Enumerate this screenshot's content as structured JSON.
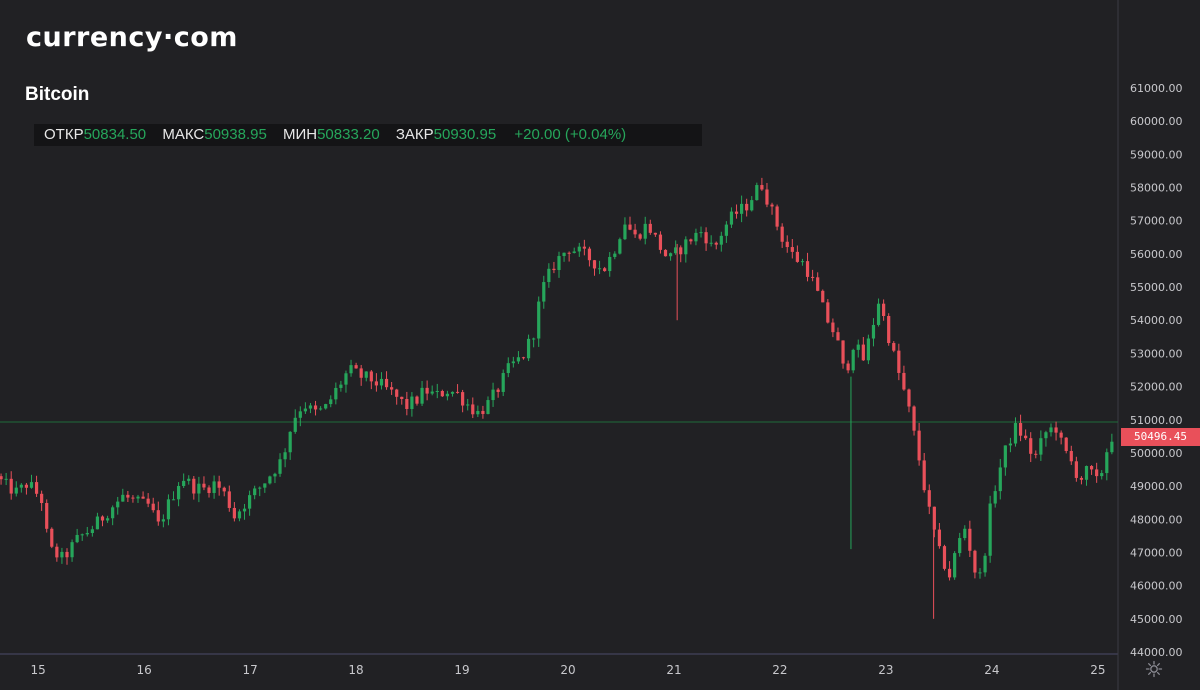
{
  "logo": "currency·com",
  "title": "Bitcoin",
  "ohlc": {
    "open_label": "ОТКР",
    "open": "50834.50",
    "high_label": "МАКС",
    "high": "50938.95",
    "low_label": "МИН",
    "low": "50833.20",
    "close_label": "ЗАКР",
    "close": "50930.95",
    "change": "+20.00 (+0.04%)"
  },
  "last_price_tag": "50496.45",
  "colors": {
    "up": "#26a65b",
    "down": "#e9505a",
    "background": "#212124",
    "price_line": "#1e6b3a"
  },
  "chart_data": {
    "type": "candlestick",
    "title": "Bitcoin",
    "xlabel": "",
    "ylabel": "",
    "x_tick_labels": [
      "15",
      "16",
      "17",
      "18",
      "19",
      "20",
      "21",
      "22",
      "23",
      "24",
      "25"
    ],
    "y_tick_labels": [
      "61000.00",
      "60000.00",
      "59000.00",
      "58000.00",
      "57000.00",
      "56000.00",
      "55000.00",
      "54000.00",
      "53000.00",
      "52000.00",
      "51000.00",
      "50000.00",
      "49000.00",
      "48000.00",
      "47000.00",
      "46000.00",
      "45000.00",
      "44000.00"
    ],
    "ylim": [
      44000,
      61300
    ],
    "x_range_days": [
      14.64,
      25.19
    ],
    "price_line": 50930.95,
    "grid": false,
    "axis_side": "right",
    "anchors": [
      [
        14.64,
        49300
      ],
      [
        14.75,
        49000
      ],
      [
        14.85,
        48800
      ],
      [
        14.95,
        49100
      ],
      [
        15.08,
        48600
      ],
      [
        15.15,
        47100
      ],
      [
        15.28,
        46800
      ],
      [
        15.42,
        47400
      ],
      [
        15.58,
        47800
      ],
      [
        15.72,
        48300
      ],
      [
        15.85,
        48700
      ],
      [
        15.98,
        48500
      ],
      [
        16.1,
        48400
      ],
      [
        16.18,
        47800
      ],
      [
        16.3,
        48600
      ],
      [
        16.4,
        49300
      ],
      [
        16.5,
        49000
      ],
      [
        16.6,
        48900
      ],
      [
        16.72,
        49100
      ],
      [
        16.82,
        48700
      ],
      [
        16.9,
        48100
      ],
      [
        17.0,
        48500
      ],
      [
        17.15,
        49000
      ],
      [
        17.25,
        49400
      ],
      [
        17.35,
        49800
      ],
      [
        17.45,
        51000
      ],
      [
        17.55,
        51500
      ],
      [
        17.65,
        51200
      ],
      [
        17.75,
        51300
      ],
      [
        17.88,
        52000
      ],
      [
        17.98,
        52500
      ],
      [
        18.1,
        52300
      ],
      [
        18.2,
        52200
      ],
      [
        18.3,
        52000
      ],
      [
        18.42,
        51700
      ],
      [
        18.52,
        51400
      ],
      [
        18.62,
        51600
      ],
      [
        18.7,
        51900
      ],
      [
        18.8,
        51700
      ],
      [
        18.9,
        51900
      ],
      [
        19.0,
        51800
      ],
      [
        19.12,
        51400
      ],
      [
        19.2,
        51200
      ],
      [
        19.3,
        51500
      ],
      [
        19.38,
        51900
      ],
      [
        19.5,
        52600
      ],
      [
        19.62,
        52900
      ],
      [
        19.72,
        53600
      ],
      [
        19.8,
        54900
      ],
      [
        19.92,
        55700
      ],
      [
        20.05,
        56200
      ],
      [
        20.18,
        56000
      ],
      [
        20.28,
        55800
      ],
      [
        20.38,
        55500
      ],
      [
        20.48,
        56100
      ],
      [
        20.58,
        57000
      ],
      [
        20.68,
        56500
      ],
      [
        20.8,
        56900
      ],
      [
        20.9,
        56300
      ],
      [
        21.0,
        55800
      ],
      [
        21.12,
        56200
      ],
      [
        21.22,
        56500
      ],
      [
        21.32,
        56700
      ],
      [
        21.42,
        56100
      ],
      [
        21.52,
        56800
      ],
      [
        21.62,
        57200
      ],
      [
        21.72,
        57400
      ],
      [
        21.82,
        57900
      ],
      [
        21.88,
        58100
      ],
      [
        21.98,
        57200
      ],
      [
        22.08,
        56400
      ],
      [
        22.18,
        55900
      ],
      [
        22.28,
        55700
      ],
      [
        22.38,
        55000
      ],
      [
        22.48,
        54100
      ],
      [
        22.58,
        53500
      ],
      [
        22.66,
        52300
      ],
      [
        22.74,
        53300
      ],
      [
        22.84,
        52800
      ],
      [
        22.92,
        53800
      ],
      [
        22.98,
        54600
      ],
      [
        23.05,
        53800
      ],
      [
        23.15,
        52600
      ],
      [
        23.25,
        51500
      ],
      [
        23.35,
        50000
      ],
      [
        23.45,
        48300
      ],
      [
        23.55,
        47000
      ],
      [
        23.65,
        46300
      ],
      [
        23.72,
        47200
      ],
      [
        23.8,
        47800
      ],
      [
        23.88,
        46500
      ],
      [
        23.95,
        46200
      ],
      [
        24.02,
        48100
      ],
      [
        24.1,
        49300
      ],
      [
        24.2,
        50300
      ],
      [
        24.28,
        50800
      ],
      [
        24.36,
        50400
      ],
      [
        24.45,
        49800
      ],
      [
        24.55,
        50600
      ],
      [
        24.65,
        50800
      ],
      [
        24.72,
        50100
      ],
      [
        24.8,
        49700
      ],
      [
        24.88,
        49200
      ],
      [
        24.96,
        49500
      ],
      [
        25.04,
        49100
      ],
      [
        25.1,
        49600
      ],
      [
        25.16,
        50500
      ]
    ]
  }
}
